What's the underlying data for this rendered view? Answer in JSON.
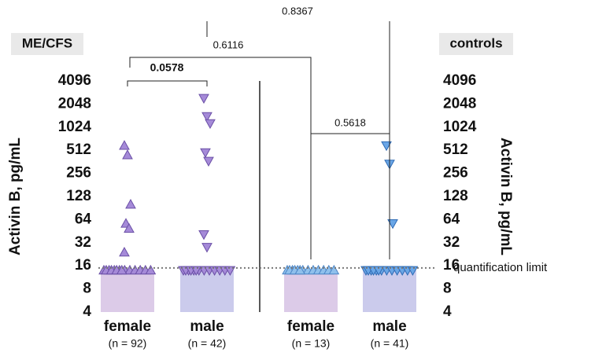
{
  "chart_data": {
    "type": "dot",
    "ylabel": "Activin B, pg/mL",
    "y2label": "Activin B, pg/mL",
    "yscale": "log2",
    "ylim": [
      4,
      4096
    ],
    "yticks": [
      4,
      8,
      16,
      32,
      64,
      128,
      256,
      512,
      1024,
      2048,
      4096
    ],
    "panels": [
      {
        "title": "ME/CFS"
      },
      {
        "title": "controls"
      }
    ],
    "limit": {
      "value": 15,
      "label": "quantification limit"
    },
    "series": [
      {
        "name": "female",
        "count_label": "(n = 92)",
        "marker": "triangle-up",
        "color": "#a58ad8",
        "edge": "#6a4fa6",
        "bar_color": "#dccbe8",
        "bar_value": 14,
        "values": [
          590,
          445,
          101,
          57,
          49,
          24,
          14,
          14,
          14,
          14,
          14,
          14,
          14,
          14,
          14,
          14,
          14,
          14,
          14,
          14
        ]
      },
      {
        "name": "male",
        "count_label": "(n = 42)",
        "marker": "triangle-down",
        "color": "#a58ad8",
        "edge": "#6a4fa6",
        "bar_color": "#cbcbec",
        "bar_value": 14,
        "values": [
          2440,
          1418,
          1147,
          479,
          370,
          41,
          28,
          14,
          14,
          14,
          14,
          14,
          14,
          14,
          14,
          14,
          14,
          14,
          14,
          14
        ]
      },
      {
        "name": "female",
        "count_label": "(n = 13)",
        "marker": "triangle-up",
        "color": "#8fc0ec",
        "edge": "#4d86c6",
        "bar_color": "#dccbe8",
        "bar_value": 14,
        "values": [
          14,
          14,
          14,
          14,
          14,
          14,
          14,
          14,
          14,
          14,
          14,
          14,
          14
        ]
      },
      {
        "name": "male",
        "count_label": "(n = 41)",
        "marker": "triangle-down",
        "color": "#6aa6e6",
        "edge": "#2e6bb5",
        "bar_color": "#cbcbec",
        "bar_value": 14,
        "values": [
          590,
          340,
          57,
          14,
          14,
          14,
          14,
          14,
          14,
          14,
          14,
          14,
          14,
          14,
          14,
          14
        ]
      }
    ],
    "comparisons": [
      {
        "p": 0.0578,
        "bold": true
      },
      {
        "p": 0.6116,
        "bold": false
      },
      {
        "p": 0.8367,
        "bold": false
      },
      {
        "p": 0.5618,
        "bold": false
      }
    ]
  }
}
